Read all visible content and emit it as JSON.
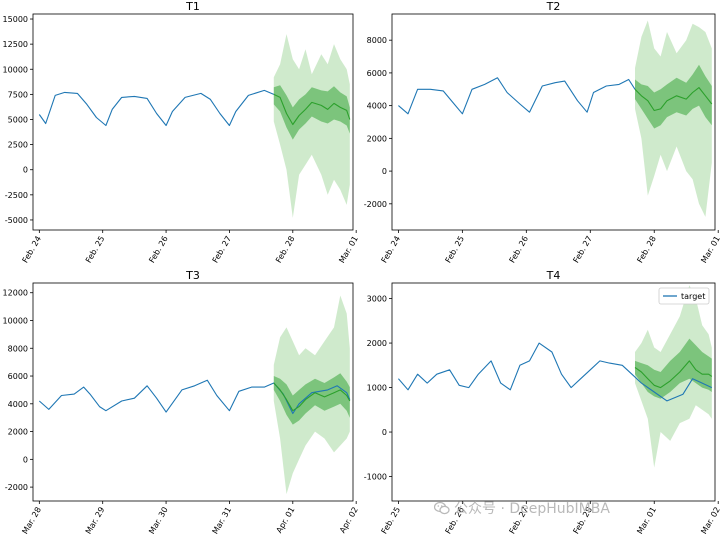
{
  "chart_data": [
    {
      "type": "line",
      "title": "T1",
      "xlabel": "",
      "ylabel": "",
      "ylim": [
        -6000,
        15500
      ],
      "yticks": [
        -5000,
        -2500,
        0,
        2500,
        5000,
        7500,
        10000,
        12500,
        15000
      ],
      "xlim": [
        -0.1,
        4.95
      ],
      "xticks": [
        {
          "x": 0,
          "label": "Feb. 24"
        },
        {
          "x": 1,
          "label": "Feb. 25"
        },
        {
          "x": 2,
          "label": "Feb. 26"
        },
        {
          "x": 3,
          "label": "Feb. 27"
        },
        {
          "x": 4,
          "label": "Feb. 28"
        },
        {
          "x": 5,
          "label": "Mar. 01"
        }
      ],
      "series": [
        {
          "role": "target",
          "color": "#1f77b4",
          "x": [
            0.0,
            0.1,
            0.25,
            0.4,
            0.6,
            0.75,
            0.9,
            1.05,
            1.15,
            1.3,
            1.5,
            1.7,
            1.85,
            2.0,
            2.1,
            2.3,
            2.55,
            2.7,
            2.85,
            3.0,
            3.1,
            3.3,
            3.55,
            3.7
          ],
          "y": [
            5500,
            4600,
            7400,
            7700,
            7600,
            6500,
            5200,
            4400,
            6000,
            7200,
            7300,
            7100,
            5600,
            4400,
            5800,
            7200,
            7600,
            7000,
            5600,
            4400,
            5800,
            7400,
            7900,
            7500
          ]
        },
        {
          "role": "forecast",
          "color": "#2ca02c",
          "x": [
            3.7,
            3.8,
            3.9,
            4.0,
            4.1,
            4.2,
            4.3,
            4.45,
            4.55,
            4.65,
            4.75,
            4.85,
            4.9
          ],
          "y": [
            7500,
            7200,
            5600,
            4500,
            5400,
            6000,
            6700,
            6400,
            6000,
            6600,
            6200,
            5900,
            5000
          ],
          "band50": [
            [
              6500,
              8200
            ],
            [
              5800,
              8400
            ],
            [
              4200,
              7400
            ],
            [
              3000,
              6200
            ],
            [
              4000,
              7000
            ],
            [
              4600,
              7500
            ],
            [
              5300,
              8200
            ],
            [
              4800,
              7900
            ],
            [
              4600,
              7800
            ],
            [
              5000,
              8300
            ],
            [
              4800,
              7700
            ],
            [
              4400,
              7300
            ],
            [
              3600,
              6200
            ]
          ],
          "band90": [
            [
              4800,
              9200
            ],
            [
              2500,
              10500
            ],
            [
              0,
              13500
            ],
            [
              -4800,
              11000
            ],
            [
              -500,
              10000
            ],
            [
              500,
              12000
            ],
            [
              1500,
              9500
            ],
            [
              -500,
              11500
            ],
            [
              -2500,
              10500
            ],
            [
              -1000,
              12500
            ],
            [
              -2000,
              11000
            ],
            [
              -3500,
              10000
            ],
            [
              -1500,
              8500
            ]
          ]
        }
      ]
    },
    {
      "type": "line",
      "title": "T2",
      "xlabel": "",
      "ylabel": "",
      "ylim": [
        -3600,
        9600
      ],
      "yticks": [
        -2000,
        0,
        2000,
        4000,
        6000,
        8000
      ],
      "xlim": [
        -0.1,
        4.95
      ],
      "xticks": [
        {
          "x": 0,
          "label": "Feb. 24"
        },
        {
          "x": 1,
          "label": "Feb. 25"
        },
        {
          "x": 2,
          "label": "Feb. 26"
        },
        {
          "x": 3,
          "label": "Feb. 27"
        },
        {
          "x": 4,
          "label": "Feb. 28"
        },
        {
          "x": 5,
          "label": "Mar. 01"
        }
      ],
      "series": [
        {
          "role": "target",
          "color": "#1f77b4",
          "x": [
            0.0,
            0.15,
            0.3,
            0.5,
            0.7,
            0.85,
            1.0,
            1.15,
            1.35,
            1.55,
            1.7,
            1.9,
            2.05,
            2.25,
            2.45,
            2.6,
            2.8,
            2.95,
            3.05,
            3.25,
            3.45,
            3.6,
            3.7
          ],
          "y": [
            4000,
            3500,
            5000,
            5000,
            4900,
            4200,
            3500,
            5000,
            5300,
            5700,
            4800,
            4100,
            3600,
            5200,
            5400,
            5500,
            4300,
            3600,
            4800,
            5200,
            5300,
            5600,
            5000
          ]
        },
        {
          "role": "forecast",
          "color": "#2ca02c",
          "x": [
            3.7,
            3.8,
            3.9,
            4.0,
            4.1,
            4.2,
            4.35,
            4.5,
            4.6,
            4.7,
            4.8,
            4.9
          ],
          "y": [
            5000,
            4600,
            4300,
            3700,
            3800,
            4300,
            4600,
            4400,
            4800,
            5100,
            4600,
            4100
          ],
          "band50": [
            [
              4400,
              5600
            ],
            [
              3800,
              5300
            ],
            [
              3200,
              5200
            ],
            [
              2600,
              4800
            ],
            [
              2800,
              5000
            ],
            [
              3300,
              5300
            ],
            [
              3600,
              5700
            ],
            [
              3400,
              5400
            ],
            [
              3800,
              5900
            ],
            [
              4000,
              6500
            ],
            [
              3300,
              5800
            ],
            [
              2800,
              5200
            ]
          ],
          "band90": [
            [
              3800,
              6300
            ],
            [
              2000,
              8200
            ],
            [
              -1500,
              9200
            ],
            [
              -300,
              7500
            ],
            [
              1000,
              7000
            ],
            [
              0,
              8500
            ],
            [
              1500,
              7200
            ],
            [
              0,
              8000
            ],
            [
              -500,
              9000
            ],
            [
              -2000,
              8800
            ],
            [
              -2800,
              8500
            ],
            [
              500,
              7500
            ]
          ]
        }
      ]
    },
    {
      "type": "line",
      "title": "T3",
      "xlabel": "",
      "ylabel": "",
      "ylim": [
        -3000,
        12700
      ],
      "yticks": [
        -2000,
        0,
        2000,
        4000,
        6000,
        8000,
        10000,
        12000
      ],
      "xlim": [
        -0.1,
        4.95
      ],
      "xticks": [
        {
          "x": 0,
          "label": "Mar. 28"
        },
        {
          "x": 1,
          "label": "Mar. 29"
        },
        {
          "x": 2,
          "label": "Mar. 30"
        },
        {
          "x": 3,
          "label": "Mar. 31"
        },
        {
          "x": 4,
          "label": "Apr. 01"
        },
        {
          "x": 5,
          "label": "Apr. 02"
        }
      ],
      "series": [
        {
          "role": "target",
          "color": "#1f77b4",
          "x": [
            0.0,
            0.15,
            0.35,
            0.55,
            0.7,
            0.8,
            0.95,
            1.05,
            1.3,
            1.5,
            1.7,
            1.85,
            2.0,
            2.25,
            2.45,
            2.65,
            2.8,
            3.0,
            3.15,
            3.35,
            3.55,
            3.7,
            3.85,
            4.0,
            4.1,
            4.3,
            4.55,
            4.7,
            4.85,
            4.9
          ],
          "y": [
            4200,
            3600,
            4600,
            4700,
            5200,
            4700,
            3800,
            3500,
            4200,
            4400,
            5300,
            4400,
            3400,
            5000,
            5300,
            5700,
            4600,
            3500,
            4900,
            5200,
            5200,
            5500,
            4700,
            3300,
            4000,
            4800,
            5000,
            5300,
            4800,
            4300
          ]
        },
        {
          "role": "forecast",
          "color": "#2ca02c",
          "x": [
            3.7,
            3.8,
            3.9,
            4.0,
            4.1,
            4.2,
            4.35,
            4.5,
            4.65,
            4.75,
            4.85,
            4.9
          ],
          "y": [
            5500,
            5000,
            4300,
            3500,
            3800,
            4300,
            4800,
            4500,
            4800,
            5000,
            4600,
            4200
          ],
          "band50": [
            [
              5000,
              6000
            ],
            [
              4200,
              5800
            ],
            [
              3200,
              5400
            ],
            [
              2500,
              4600
            ],
            [
              2800,
              5000
            ],
            [
              3300,
              5400
            ],
            [
              3900,
              5800
            ],
            [
              3500,
              5500
            ],
            [
              3800,
              5900
            ],
            [
              4000,
              6200
            ],
            [
              3500,
              5600
            ],
            [
              3000,
              5200
            ]
          ],
          "band90": [
            [
              4200,
              6800
            ],
            [
              1500,
              8800
            ],
            [
              -2500,
              9500
            ],
            [
              -1000,
              8500
            ],
            [
              0,
              7500
            ],
            [
              1000,
              8000
            ],
            [
              2000,
              7500
            ],
            [
              1500,
              8500
            ],
            [
              500,
              9500
            ],
            [
              1000,
              11800
            ],
            [
              1500,
              10500
            ],
            [
              2000,
              8000
            ]
          ]
        }
      ]
    },
    {
      "type": "line",
      "title": "T4",
      "xlabel": "",
      "ylabel": "",
      "ylim": [
        -1550,
        3350
      ],
      "yticks": [
        -1000,
        0,
        1000,
        2000,
        3000
      ],
      "xlim": [
        -0.1,
        4.95
      ],
      "xticks": [
        {
          "x": 0,
          "label": "Feb. 25"
        },
        {
          "x": 1,
          "label": "Feb. 26"
        },
        {
          "x": 2,
          "label": "Feb. 27"
        },
        {
          "x": 3,
          "label": "Feb. 28"
        },
        {
          "x": 4,
          "label": "Mar. 01"
        },
        {
          "x": 5,
          "label": "Mar. 02"
        }
      ],
      "legend": {
        "label": "target",
        "loc": "top-right"
      },
      "series": [
        {
          "role": "target",
          "color": "#1f77b4",
          "x": [
            0.0,
            0.15,
            0.3,
            0.45,
            0.6,
            0.8,
            0.95,
            1.1,
            1.25,
            1.45,
            1.6,
            1.75,
            1.9,
            2.05,
            2.2,
            2.4,
            2.55,
            2.7,
            2.85,
            3.0,
            3.15,
            3.3,
            3.5,
            3.65,
            3.8,
            4.0,
            4.2,
            4.45,
            4.6,
            4.75,
            4.9
          ],
          "y": [
            1200,
            950,
            1300,
            1100,
            1300,
            1400,
            1050,
            1000,
            1300,
            1600,
            1100,
            950,
            1500,
            1600,
            2000,
            1800,
            1300,
            1000,
            1200,
            1400,
            1600,
            1550,
            1500,
            1300,
            1100,
            900,
            700,
            850,
            1200,
            1100,
            1000
          ]
        },
        {
          "role": "forecast",
          "color": "#2ca02c",
          "x": [
            3.7,
            3.8,
            3.9,
            4.0,
            4.1,
            4.25,
            4.4,
            4.55,
            4.65,
            4.75,
            4.85,
            4.9
          ],
          "y": [
            1450,
            1350,
            1200,
            1050,
            1000,
            1150,
            1350,
            1600,
            1400,
            1300,
            1300,
            1250
          ],
          "band50": [
            [
              1300,
              1600
            ],
            [
              1100,
              1550
            ],
            [
              900,
              1500
            ],
            [
              800,
              1400
            ],
            [
              750,
              1350
            ],
            [
              900,
              1600
            ],
            [
              1100,
              1800
            ],
            [
              1200,
              2100
            ],
            [
              1100,
              1950
            ],
            [
              1000,
              1800
            ],
            [
              950,
              1700
            ],
            [
              900,
              1650
            ]
          ],
          "band90": [
            [
              1100,
              1800
            ],
            [
              700,
              2000
            ],
            [
              300,
              2300
            ],
            [
              -800,
              1900
            ],
            [
              0,
              1800
            ],
            [
              -200,
              2200
            ],
            [
              200,
              2600
            ],
            [
              300,
              3300
            ],
            [
              600,
              3000
            ],
            [
              500,
              2400
            ],
            [
              400,
              2200
            ],
            [
              300,
              1900
            ]
          ]
        }
      ]
    }
  ],
  "watermark": {
    "text": "公众号 · DeepHubIMBA",
    "icon": "wechat-icon"
  }
}
